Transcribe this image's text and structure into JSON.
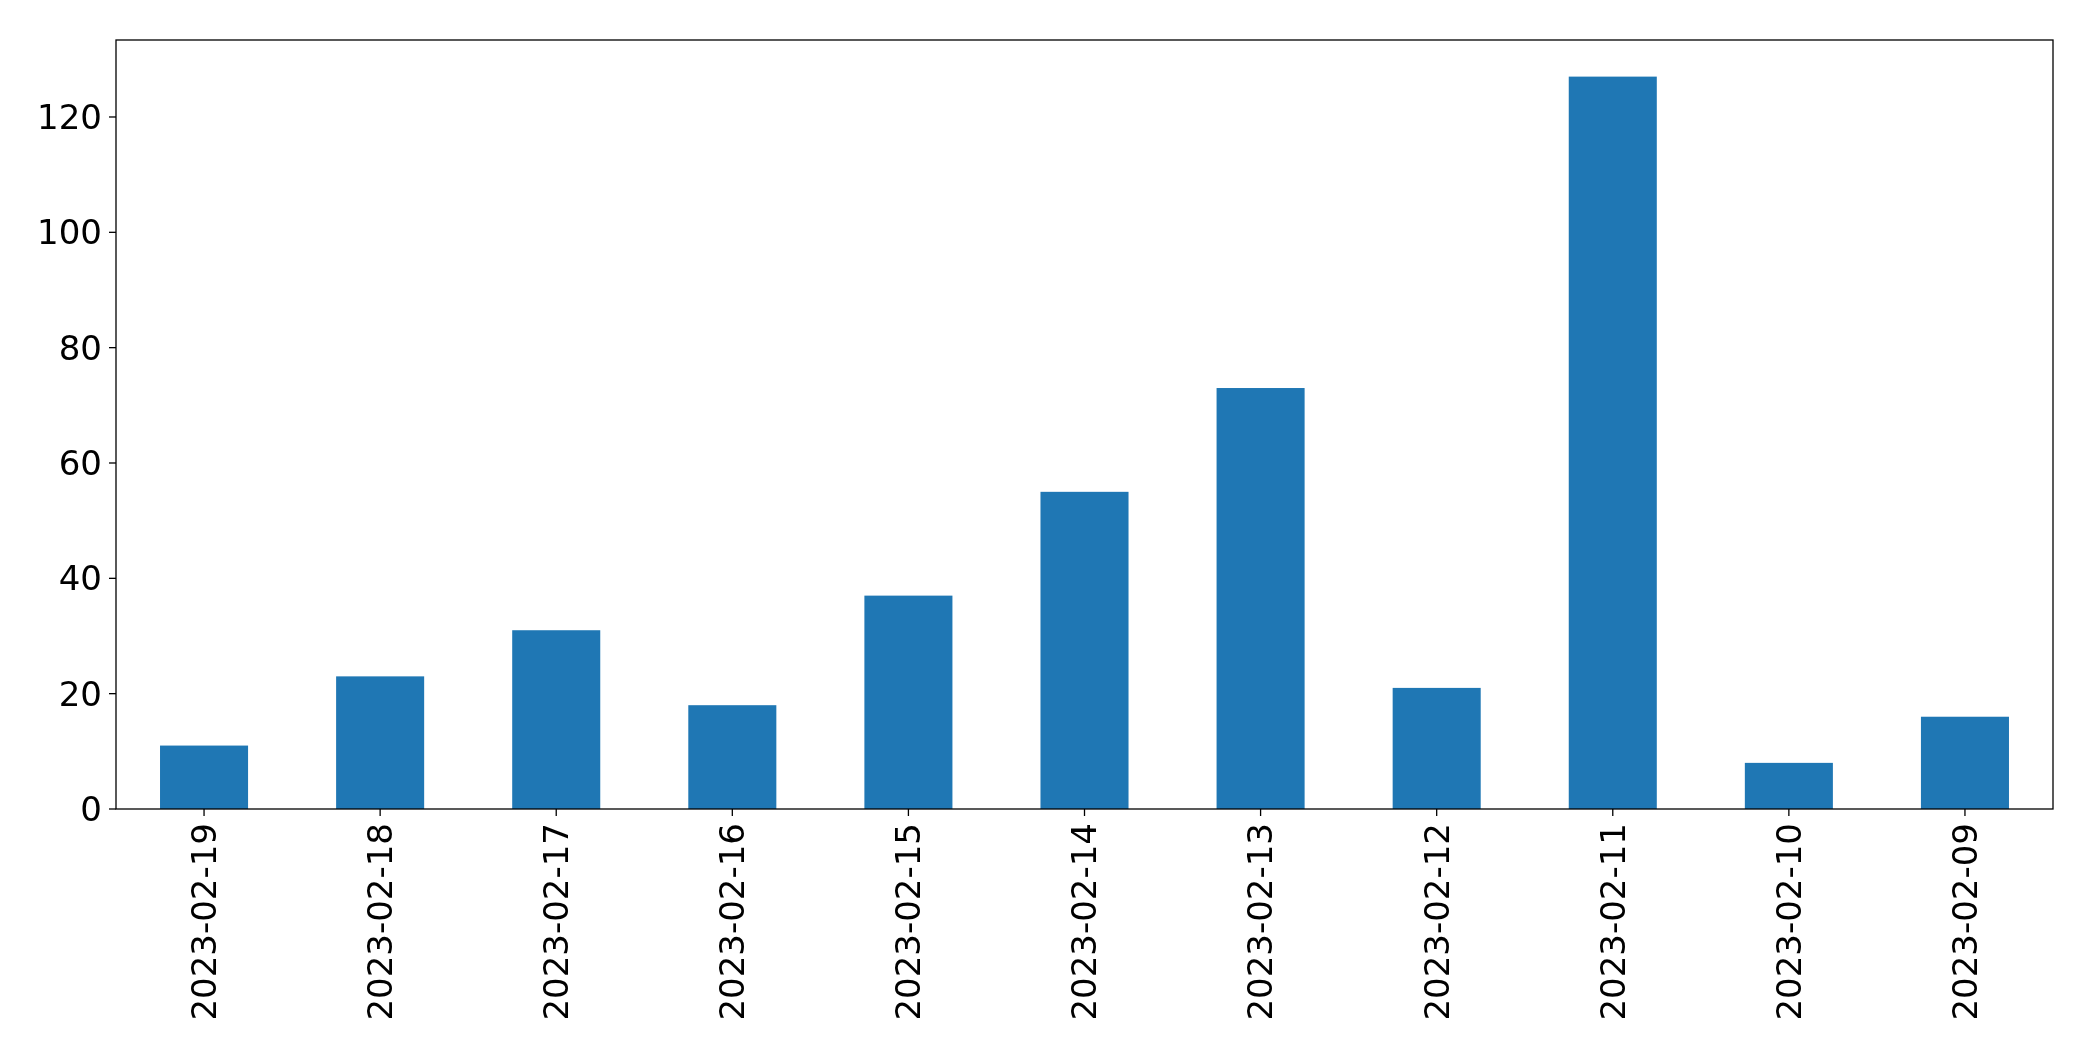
{
  "chart_data": {
    "type": "bar",
    "categories": [
      "2023-02-19",
      "2023-02-18",
      "2023-02-17",
      "2023-02-16",
      "2023-02-15",
      "2023-02-14",
      "2023-02-13",
      "2023-02-12",
      "2023-02-11",
      "2023-02-10",
      "2023-02-09"
    ],
    "values": [
      11,
      23,
      31,
      18,
      37,
      55,
      73,
      21,
      127,
      8,
      16
    ],
    "color": "#1f77b4",
    "ylim": [
      0,
      133.35
    ],
    "yticks": [
      0,
      20,
      40,
      60,
      80,
      100,
      120
    ]
  }
}
